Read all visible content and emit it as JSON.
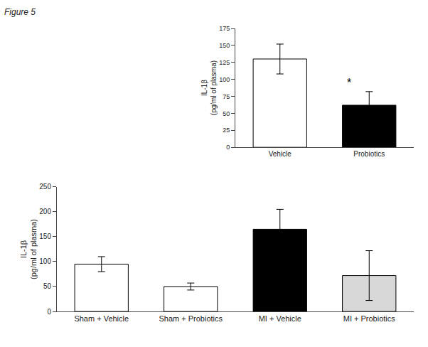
{
  "chart_data": [
    {
      "type": "bar",
      "title": "Figure 5",
      "categories": [
        "Sham + Vehicle",
        "Sham + Probiotics",
        "MI + Vehicle",
        "MI + Probiotics"
      ],
      "values": [
        95,
        50,
        165,
        72
      ],
      "errors": [
        15,
        7,
        40,
        50
      ],
      "colors": [
        "white",
        "white",
        "black",
        "#d8d8d8"
      ],
      "ylabel": "IL-1β\n(pg/ml of plasma)",
      "ylim": [
        0,
        250
      ],
      "yticks": [
        0,
        50,
        100,
        150,
        200,
        250
      ],
      "grid": false
    },
    {
      "type": "bar",
      "categories": [
        "Vehicle",
        "Probiotics"
      ],
      "values": [
        130,
        62
      ],
      "errors": [
        22,
        20
      ],
      "colors": [
        "white",
        "black"
      ],
      "ylabel": "IL-1β\n(pg/ml of plasma)",
      "ylim": [
        0,
        175
      ],
      "yticks": [
        0,
        25,
        50,
        75,
        100,
        125,
        150,
        175
      ],
      "grid": false,
      "annotations": [
        {
          "text": "*",
          "x": "Probiotics"
        }
      ]
    }
  ]
}
